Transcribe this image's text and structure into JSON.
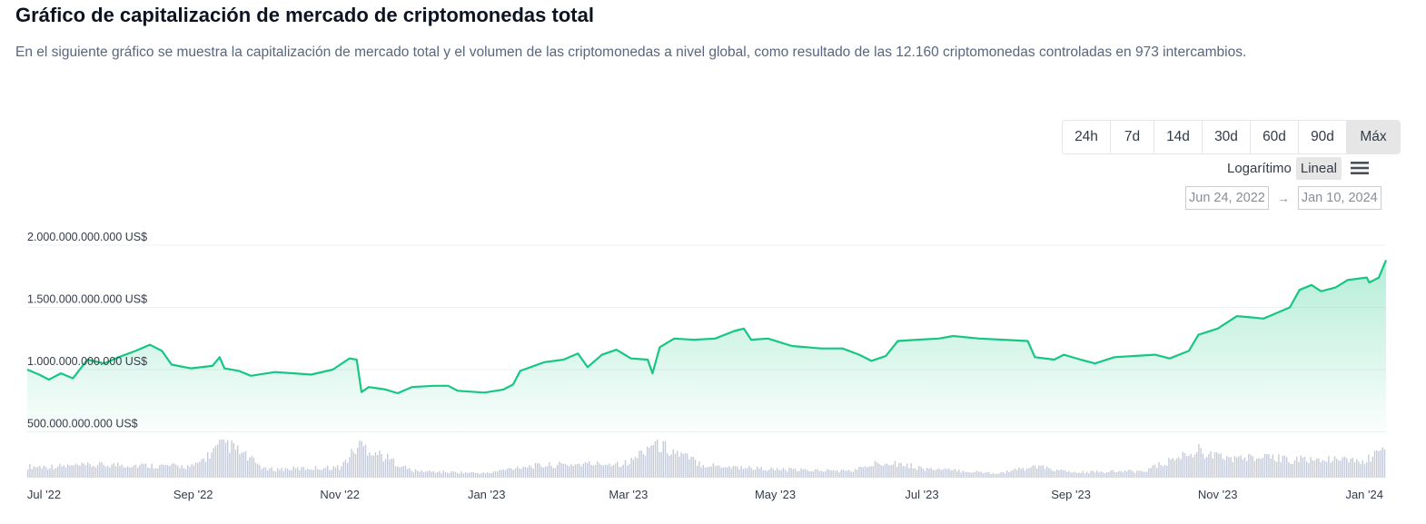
{
  "header": {
    "title": "Gráfico de capitalización de mercado de criptomonedas total",
    "description": "En el siguiente gráfico se muestra la capitalización de mercado total y el volumen de las criptomonedas a nivel global, como resultado de las 12.160 criptomonedas controladas en 973 intercambios."
  },
  "controls": {
    "ranges": [
      "24h",
      "7d",
      "14d",
      "30d",
      "60d",
      "90d",
      "Máx"
    ],
    "active_range": "Máx",
    "scale_log": "Logarítimo",
    "scale_linear": "Lineal",
    "active_scale": "Lineal",
    "menu_icon": "hamburger-menu-icon",
    "date_from": "Jun 24, 2022",
    "date_arrow": "→",
    "date_to": "Jan 10, 2024"
  },
  "colors": {
    "line": "#16c784",
    "area_top": "#16c784",
    "volume": "#c4cad8",
    "grid": "#eef0f3",
    "axis_text": "#333b47"
  },
  "chart_data": {
    "type": "area",
    "y_axis": {
      "ticks": [
        500000000000,
        1000000000000,
        1500000000000,
        2000000000000
      ],
      "tick_labels": [
        "500.000.000.000 US$",
        "1.000.000.000.000 US$",
        "1.500.000.000.000 US$",
        "2.000.000.000.000 US$"
      ],
      "range": [
        500000000000,
        2000000000000
      ]
    },
    "x_axis": {
      "range": [
        "2022-06-24",
        "2024-01-10"
      ],
      "ticks": [
        "2022-07-01",
        "2022-09-01",
        "2022-11-01",
        "2023-01-01",
        "2023-03-01",
        "2023-05-01",
        "2023-07-01",
        "2023-09-01",
        "2023-11-01",
        "2024-01-01"
      ],
      "tick_labels": [
        "Jul '22",
        "Sep '22",
        "Nov '22",
        "Jan '23",
        "Mar '23",
        "May '23",
        "Jul '23",
        "Sep '23",
        "Nov '23",
        "Jan '24"
      ]
    },
    "series": [
      {
        "values_unit": "US$",
        "points": [
          [
            "2022-06-24",
            1000000000000
          ],
          [
            "2022-06-29",
            960000000000
          ],
          [
            "2022-07-03",
            920000000000
          ],
          [
            "2022-07-08",
            970000000000
          ],
          [
            "2022-07-13",
            930000000000
          ],
          [
            "2022-07-19",
            1080000000000
          ],
          [
            "2022-07-26",
            1050000000000
          ],
          [
            "2022-08-01",
            1100000000000
          ],
          [
            "2022-08-08",
            1150000000000
          ],
          [
            "2022-08-14",
            1200000000000
          ],
          [
            "2022-08-19",
            1150000000000
          ],
          [
            "2022-08-23",
            1040000000000
          ],
          [
            "2022-08-31",
            1010000000000
          ],
          [
            "2022-09-09",
            1030000000000
          ],
          [
            "2022-09-12",
            1100000000000
          ],
          [
            "2022-09-14",
            1010000000000
          ],
          [
            "2022-09-20",
            990000000000
          ],
          [
            "2022-09-25",
            950000000000
          ],
          [
            "2022-10-05",
            980000000000
          ],
          [
            "2022-10-13",
            970000000000
          ],
          [
            "2022-10-20",
            960000000000
          ],
          [
            "2022-10-29",
            1000000000000
          ],
          [
            "2022-11-05",
            1090000000000
          ],
          [
            "2022-11-08",
            1080000000000
          ],
          [
            "2022-11-10",
            820000000000
          ],
          [
            "2022-11-13",
            860000000000
          ],
          [
            "2022-11-20",
            840000000000
          ],
          [
            "2022-11-25",
            810000000000
          ],
          [
            "2022-12-01",
            860000000000
          ],
          [
            "2022-12-10",
            870000000000
          ],
          [
            "2022-12-16",
            870000000000
          ],
          [
            "2022-12-20",
            830000000000
          ],
          [
            "2022-12-31",
            815000000000
          ],
          [
            "2023-01-08",
            840000000000
          ],
          [
            "2023-01-12",
            880000000000
          ],
          [
            "2023-01-15",
            990000000000
          ],
          [
            "2023-01-25",
            1060000000000
          ],
          [
            "2023-02-02",
            1080000000000
          ],
          [
            "2023-02-08",
            1130000000000
          ],
          [
            "2023-02-12",
            1020000000000
          ],
          [
            "2023-02-18",
            1120000000000
          ],
          [
            "2023-02-24",
            1160000000000
          ],
          [
            "2023-03-02",
            1090000000000
          ],
          [
            "2023-03-09",
            1080000000000
          ],
          [
            "2023-03-11",
            970000000000
          ],
          [
            "2023-03-14",
            1180000000000
          ],
          [
            "2023-03-20",
            1250000000000
          ],
          [
            "2023-03-28",
            1240000000000
          ],
          [
            "2023-04-06",
            1250000000000
          ],
          [
            "2023-04-14",
            1310000000000
          ],
          [
            "2023-04-18",
            1330000000000
          ],
          [
            "2023-04-21",
            1240000000000
          ],
          [
            "2023-04-28",
            1250000000000
          ],
          [
            "2023-05-08",
            1190000000000
          ],
          [
            "2023-05-20",
            1170000000000
          ],
          [
            "2023-05-29",
            1170000000000
          ],
          [
            "2023-06-05",
            1120000000000
          ],
          [
            "2023-06-10",
            1070000000000
          ],
          [
            "2023-06-16",
            1110000000000
          ],
          [
            "2023-06-21",
            1230000000000
          ],
          [
            "2023-06-29",
            1240000000000
          ],
          [
            "2023-07-08",
            1250000000000
          ],
          [
            "2023-07-14",
            1270000000000
          ],
          [
            "2023-07-25",
            1250000000000
          ],
          [
            "2023-08-04",
            1240000000000
          ],
          [
            "2023-08-14",
            1230000000000
          ],
          [
            "2023-08-17",
            1100000000000
          ],
          [
            "2023-08-25",
            1080000000000
          ],
          [
            "2023-08-29",
            1120000000000
          ],
          [
            "2023-09-05",
            1080000000000
          ],
          [
            "2023-09-11",
            1050000000000
          ],
          [
            "2023-09-19",
            1100000000000
          ],
          [
            "2023-09-28",
            1110000000000
          ],
          [
            "2023-10-06",
            1120000000000
          ],
          [
            "2023-10-12",
            1090000000000
          ],
          [
            "2023-10-20",
            1150000000000
          ],
          [
            "2023-10-24",
            1280000000000
          ],
          [
            "2023-11-01",
            1330000000000
          ],
          [
            "2023-11-09",
            1430000000000
          ],
          [
            "2023-11-15",
            1420000000000
          ],
          [
            "2023-11-20",
            1410000000000
          ],
          [
            "2023-12-01",
            1500000000000
          ],
          [
            "2023-12-05",
            1640000000000
          ],
          [
            "2023-12-10",
            1680000000000
          ],
          [
            "2023-12-14",
            1630000000000
          ],
          [
            "2023-12-20",
            1660000000000
          ],
          [
            "2023-12-25",
            1720000000000
          ],
          [
            "2024-01-02",
            1740000000000
          ],
          [
            "2024-01-03",
            1700000000000
          ],
          [
            "2024-01-07",
            1740000000000
          ],
          [
            "2024-01-10",
            1880000000000
          ]
        ]
      }
    ],
    "volume": {
      "points": [
        [
          "2022-07-01",
          0.3
        ],
        [
          "2022-08-01",
          0.35
        ],
        [
          "2022-09-01",
          0.3
        ],
        [
          "2022-09-14",
          0.95
        ],
        [
          "2022-10-01",
          0.22
        ],
        [
          "2022-11-01",
          0.28
        ],
        [
          "2022-11-09",
          0.9
        ],
        [
          "2022-12-01",
          0.18
        ],
        [
          "2023-01-01",
          0.12
        ],
        [
          "2023-01-15",
          0.3
        ],
        [
          "2023-02-01",
          0.35
        ],
        [
          "2023-03-01",
          0.4
        ],
        [
          "2023-03-11",
          0.95
        ],
        [
          "2023-04-01",
          0.35
        ],
        [
          "2023-05-01",
          0.22
        ],
        [
          "2023-06-01",
          0.18
        ],
        [
          "2023-06-16",
          0.45
        ],
        [
          "2023-07-01",
          0.25
        ],
        [
          "2023-08-01",
          0.12
        ],
        [
          "2023-08-17",
          0.3
        ],
        [
          "2023-09-01",
          0.14
        ],
        [
          "2023-10-01",
          0.18
        ],
        [
          "2023-10-24",
          0.75
        ],
        [
          "2023-11-01",
          0.55
        ],
        [
          "2023-12-01",
          0.5
        ],
        [
          "2024-01-01",
          0.45
        ],
        [
          "2024-01-10",
          0.8
        ]
      ]
    },
    "grid": true,
    "legend": "none"
  }
}
